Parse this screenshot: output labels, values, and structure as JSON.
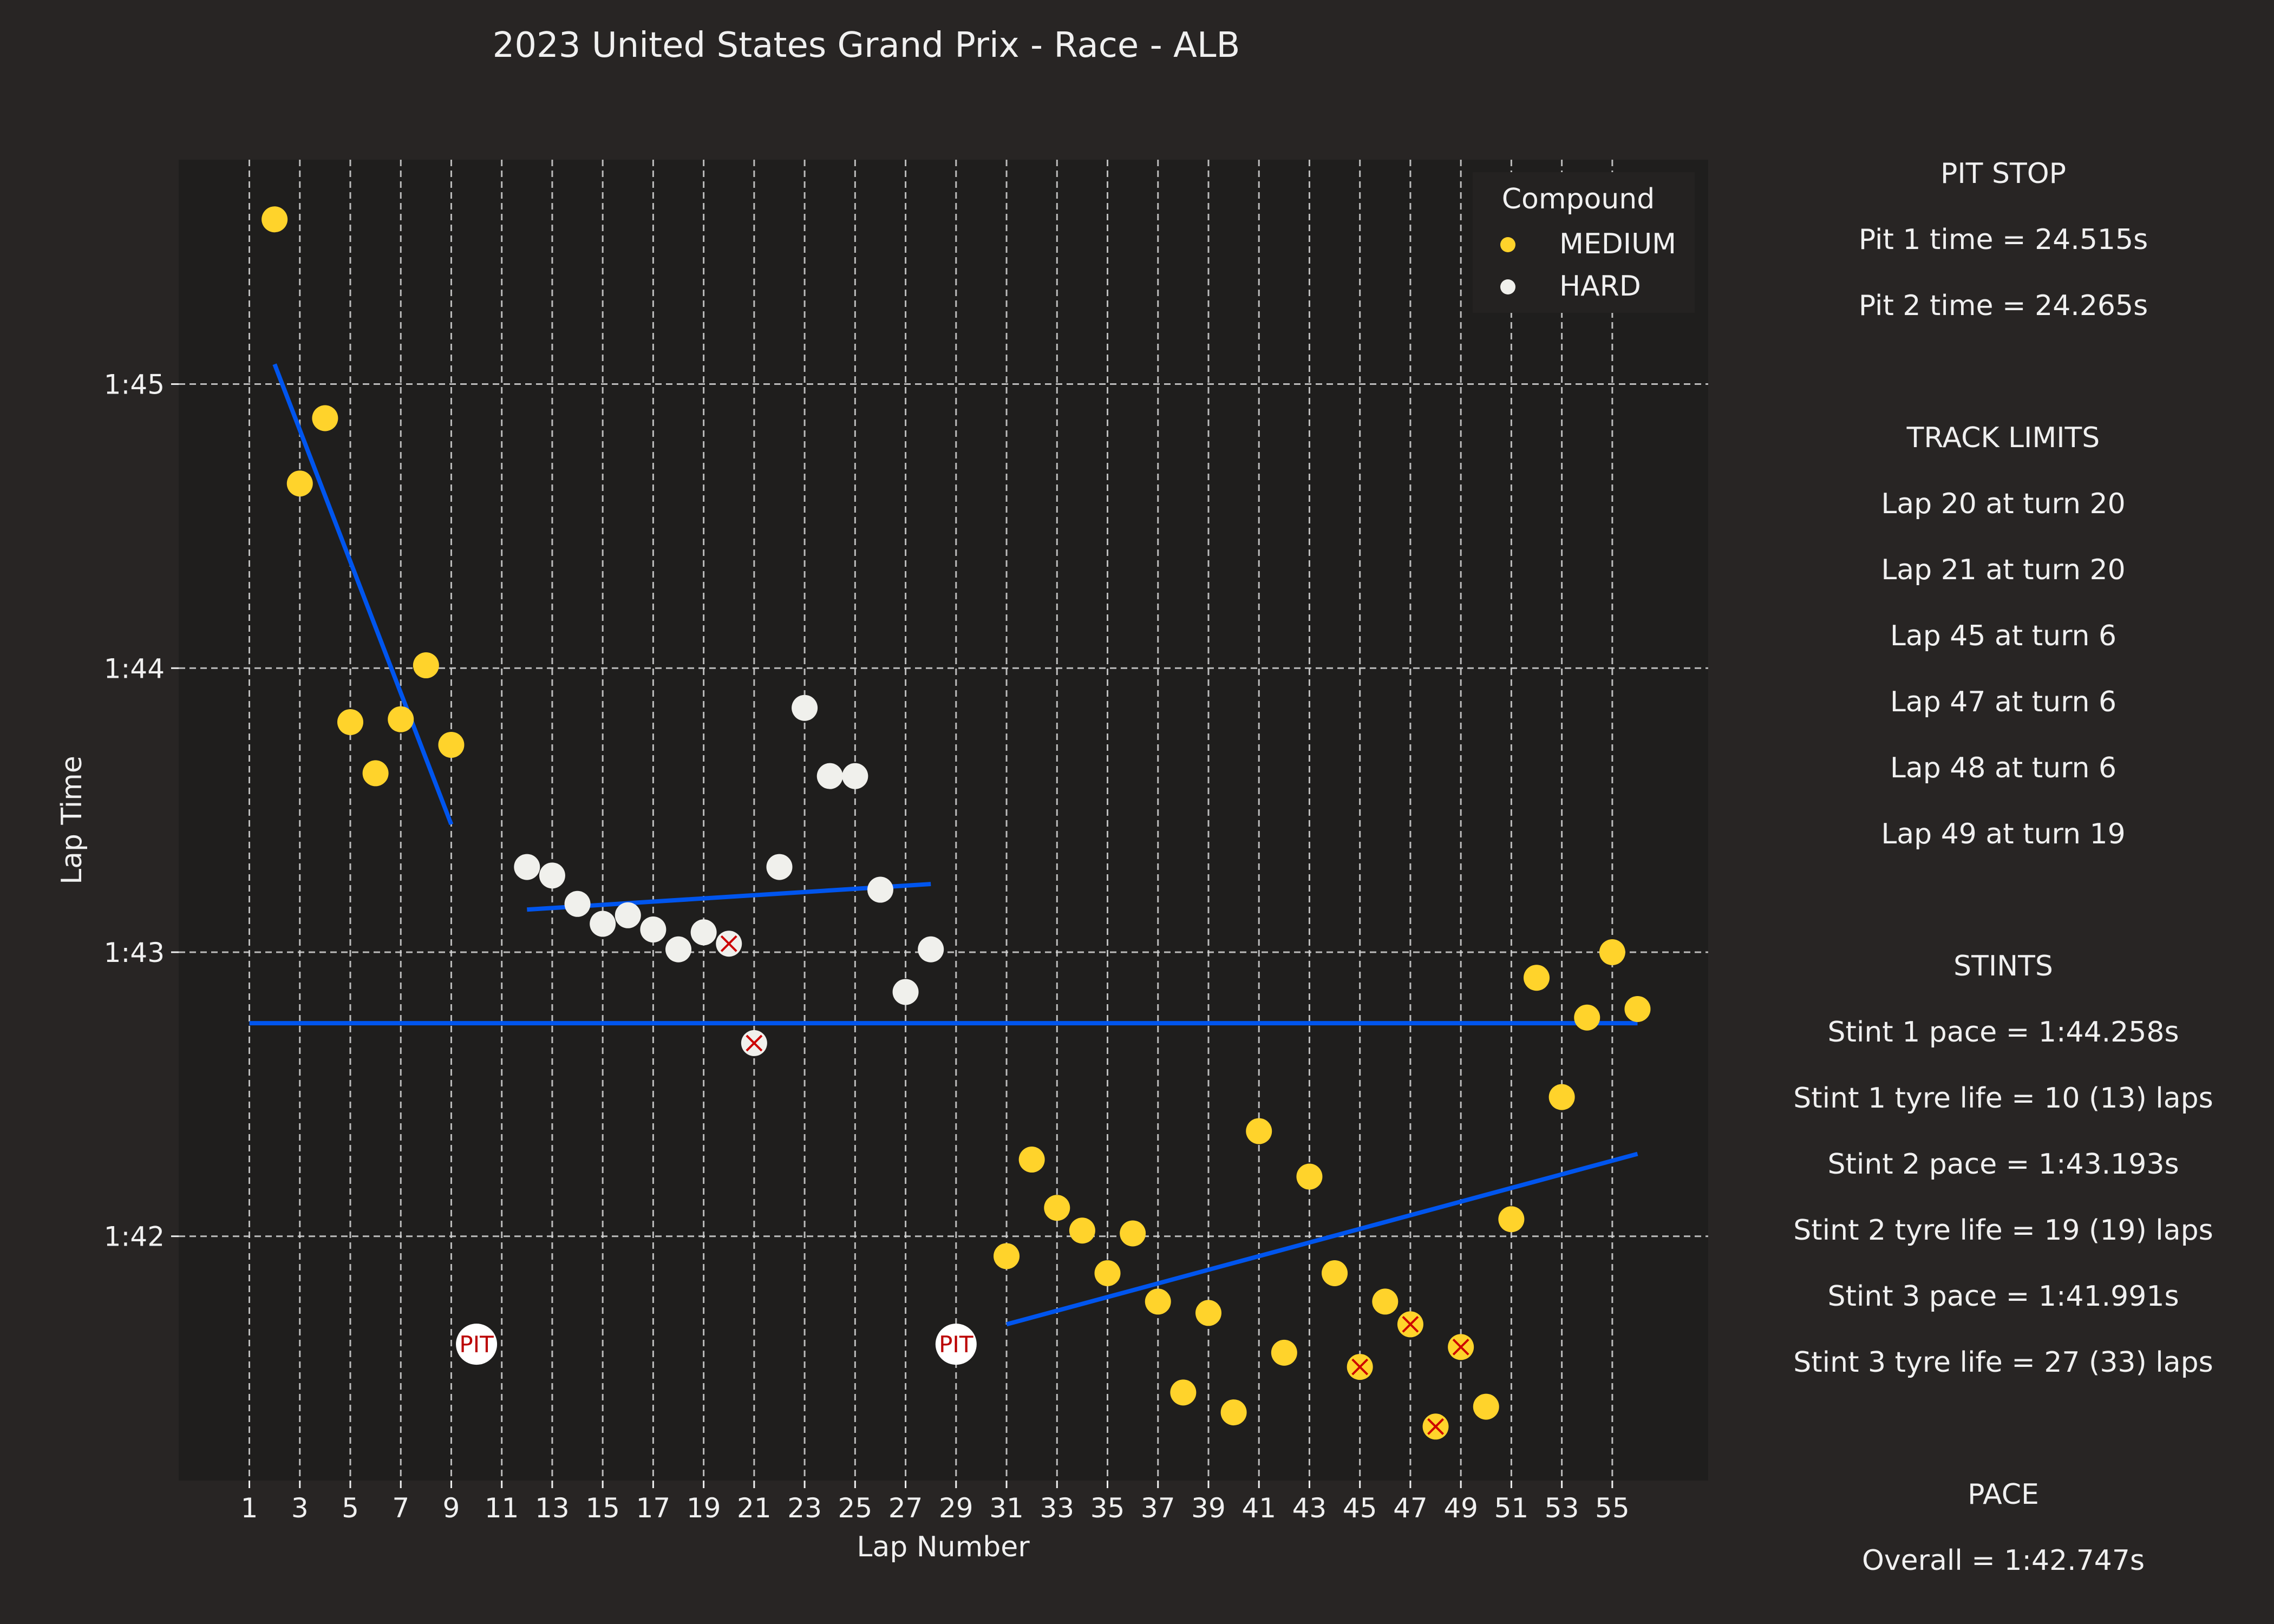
{
  "chart_data": {
    "type": "scatter",
    "title": "2023 United States Grand Prix - Race - ALB",
    "xlabel": "Lap Number",
    "ylabel": "Lap Time",
    "xlim": [
      -1.8,
      58.8
    ],
    "ylim": [
      101.14,
      105.79
    ],
    "x_ticks": [
      1,
      3,
      5,
      7,
      9,
      11,
      13,
      15,
      17,
      19,
      21,
      23,
      25,
      27,
      29,
      31,
      33,
      35,
      37,
      39,
      41,
      43,
      45,
      47,
      49,
      51,
      53,
      55
    ],
    "y_ticks": [
      {
        "value": 102,
        "label": "1:42"
      },
      {
        "value": 103,
        "label": "1:43"
      },
      {
        "value": 104,
        "label": "1:44"
      },
      {
        "value": 105,
        "label": "1:45"
      }
    ],
    "grid": true,
    "legend": {
      "title": "Compound",
      "position": "top-right",
      "entries": [
        {
          "name": "MEDIUM",
          "color": "#ffd32b"
        },
        {
          "name": "HARD",
          "color": "#f0f0ec"
        }
      ]
    },
    "series": [
      {
        "name": "MEDIUM",
        "color": "#ffd32b",
        "points": [
          [
            2,
            105.58
          ],
          [
            3,
            104.65
          ],
          [
            4,
            104.88
          ],
          [
            5,
            103.81
          ],
          [
            6,
            103.63
          ],
          [
            7,
            103.82
          ],
          [
            8,
            104.01
          ],
          [
            9,
            103.73
          ],
          [
            31,
            101.93
          ],
          [
            32,
            102.27
          ],
          [
            33,
            102.1
          ],
          [
            34,
            102.02
          ],
          [
            35,
            101.87
          ],
          [
            36,
            102.01
          ],
          [
            37,
            101.77
          ],
          [
            38,
            101.45
          ],
          [
            39,
            101.73
          ],
          [
            40,
            101.38
          ],
          [
            41,
            102.37
          ],
          [
            42,
            101.59
          ],
          [
            43,
            102.21
          ],
          [
            44,
            101.87
          ],
          [
            45,
            101.54
          ],
          [
            46,
            101.77
          ],
          [
            47,
            101.69
          ],
          [
            48,
            101.33
          ],
          [
            49,
            101.61
          ],
          [
            50,
            101.4
          ],
          [
            51,
            102.06
          ],
          [
            52,
            102.91
          ],
          [
            53,
            102.49
          ],
          [
            54,
            102.77
          ],
          [
            55,
            103.0
          ],
          [
            56,
            102.8
          ]
        ]
      },
      {
        "name": "HARD",
        "color": "#f0f0ec",
        "points": [
          [
            12,
            103.3
          ],
          [
            13,
            103.27
          ],
          [
            14,
            103.17
          ],
          [
            15,
            103.1
          ],
          [
            16,
            103.13
          ],
          [
            17,
            103.08
          ],
          [
            18,
            103.01
          ],
          [
            19,
            103.07
          ],
          [
            20,
            103.03
          ],
          [
            21,
            102.68
          ],
          [
            22,
            103.3
          ],
          [
            23,
            103.86
          ],
          [
            24,
            103.62
          ],
          [
            25,
            103.62
          ],
          [
            26,
            103.22
          ],
          [
            27,
            102.86
          ],
          [
            28,
            103.01
          ]
        ]
      }
    ],
    "track_limit_laps": [
      20,
      21,
      45,
      47,
      48,
      49
    ],
    "pit_laps": [
      10,
      29
    ],
    "pit_marker_label": "PIT",
    "pit_marker_y": 101.62,
    "trend_lines": [
      {
        "from": [
          2,
          105.07
        ],
        "to": [
          9,
          103.45
        ]
      },
      {
        "from": [
          12,
          103.15
        ],
        "to": [
          28,
          103.24
        ]
      },
      {
        "from": [
          31,
          101.69
        ],
        "to": [
          56,
          102.29
        ]
      },
      {
        "from": [
          1,
          102.75
        ],
        "to": [
          56,
          102.75
        ]
      }
    ],
    "colors": {
      "background": "#282524",
      "plot_bg": "#1f1e1d",
      "trend": "#0055ee",
      "track_limit_x": "#cc0000",
      "pit_text": "#bb0000",
      "text": "#f0f0f0"
    }
  },
  "side_panel": {
    "sections": [
      {
        "heading": "PIT STOP",
        "lines": [
          "Pit 1 time = 24.515s",
          "Pit 2 time = 24.265s"
        ]
      },
      {
        "heading": "TRACK LIMITS",
        "lines": [
          "Lap 20 at turn 20",
          "Lap 21 at turn 20",
          "Lap 45 at turn 6",
          "Lap 47 at turn 6",
          "Lap 48 at turn 6",
          "Lap 49 at turn 19"
        ]
      },
      {
        "heading": "STINTS",
        "lines": [
          "Stint 1 pace = 1:44.258s",
          "Stint 1 tyre life = 10 (13) laps",
          "Stint 2 pace = 1:43.193s",
          "Stint 2 tyre life = 19 (19) laps",
          "Stint 3 pace = 1:41.991s",
          "Stint 3 tyre life = 27 (33) laps"
        ]
      },
      {
        "heading": "PACE",
        "lines": [
          "Overall = 1:42.747s"
        ]
      }
    ]
  }
}
